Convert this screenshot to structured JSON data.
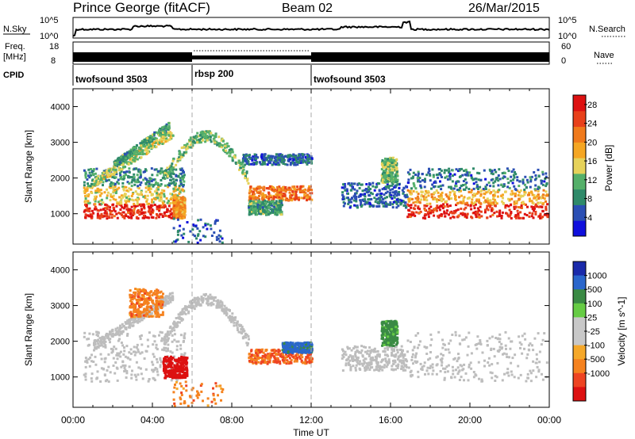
{
  "header": {
    "station": "Prince George (fitACF)",
    "beam": "Beam 02",
    "date": "26/Mar/2015"
  },
  "top_panels": {
    "nsky_label": "N.Sky",
    "nsearch_label": "N.Search",
    "nsky_ticks": [
      "10^5",
      "10^0"
    ],
    "freq_label_1": "Freq.",
    "freq_label_2": "[MHz]",
    "freq_ticks": [
      "18",
      "8"
    ],
    "nave_label": "Nave",
    "nave_ticks": [
      "60",
      "0"
    ],
    "cpid_label": "CPID",
    "cpid_segments": [
      {
        "label": "twofsound 3503",
        "start_h": 0,
        "end_h": 6
      },
      {
        "label": "rbsp 200",
        "start_h": 6,
        "end_h": 12
      },
      {
        "label": "twofsound 3503",
        "start_h": 12,
        "end_h": 24
      }
    ]
  },
  "colors": {
    "power": [
      "#1010dd",
      "#2b4fb4",
      "#2f8a6a",
      "#55b06a",
      "#e6d25a",
      "#f5a623",
      "#f07a1c",
      "#e8401a",
      "#dd1111"
    ],
    "velocity": [
      "#dd1111",
      "#ee4422",
      "#f5821f",
      "#f5a82a",
      "#c8c8c8",
      "#c8c8c8",
      "#66cc44",
      "#3a8a44",
      "#2a66cc",
      "#1a2aaa"
    ],
    "ground_grey": "#bdbdbd"
  },
  "chart_data": [
    {
      "type": "heatmap",
      "name": "power",
      "ylabel": "Slant Range [km]",
      "xlim": [
        0,
        24
      ],
      "ylim": [
        150,
        4500
      ],
      "y_ticks": [
        1000,
        2000,
        3000,
        4000
      ],
      "colorbar": {
        "label": "Power [dB]",
        "ticks": [
          "4",
          "8",
          "12",
          "16",
          "20",
          "24",
          "28"
        ],
        "range": [
          0,
          30
        ]
      },
      "mode_change_hours": [
        6,
        12
      ],
      "features": [
        {
          "kind": "band",
          "t0": 0.5,
          "t1": 5.6,
          "r0": 900,
          "r1": 1300,
          "level": 27
        },
        {
          "kind": "band",
          "t0": 0.5,
          "t1": 5.6,
          "r0": 1300,
          "r1": 1800,
          "level": 16
        },
        {
          "kind": "band",
          "t0": 0.5,
          "t1": 5.6,
          "r0": 1800,
          "r1": 2300,
          "level": 8
        },
        {
          "kind": "slope",
          "t0": 1.0,
          "t1": 5.0,
          "r0": 1900,
          "r1": 3300,
          "width": 250,
          "level": 14
        },
        {
          "kind": "slope",
          "t0": 2.0,
          "t1": 4.8,
          "r0": 2400,
          "r1": 3500,
          "width": 200,
          "level": 10
        },
        {
          "kind": "band",
          "t0": 5.0,
          "t1": 5.6,
          "r0": 900,
          "r1": 1500,
          "level": 20
        },
        {
          "kind": "arc",
          "t0": 4.5,
          "t1": 8.8,
          "r0": 2000,
          "r1": 3200,
          "width": 300,
          "level": 12
        },
        {
          "kind": "band",
          "t0": 8.8,
          "t1": 12.0,
          "r0": 1400,
          "r1": 1800,
          "level": 22
        },
        {
          "kind": "band",
          "t0": 8.8,
          "t1": 10.5,
          "r0": 1000,
          "r1": 1400,
          "level": 10
        },
        {
          "kind": "band",
          "t0": 8.5,
          "t1": 12.0,
          "r0": 2400,
          "r1": 2700,
          "level": 6
        },
        {
          "kind": "band",
          "t0": 16.8,
          "t1": 24.0,
          "r0": 900,
          "r1": 1300,
          "level": 27
        },
        {
          "kind": "band",
          "t0": 16.8,
          "t1": 24.0,
          "r0": 1300,
          "r1": 1700,
          "level": 18
        },
        {
          "kind": "band",
          "t0": 16.8,
          "t1": 24.0,
          "r0": 1700,
          "r1": 2300,
          "level": 7
        },
        {
          "kind": "band",
          "t0": 13.5,
          "t1": 16.8,
          "r0": 1200,
          "r1": 1900,
          "level": 6
        },
        {
          "kind": "band",
          "t0": 15.5,
          "t1": 16.3,
          "r0": 1900,
          "r1": 2600,
          "level": 12
        },
        {
          "kind": "speckle",
          "t0": 5.0,
          "t1": 7.5,
          "r0": 200,
          "r1": 900,
          "level": 6
        }
      ]
    },
    {
      "type": "heatmap",
      "name": "velocity",
      "ylabel": "Slant Range [km]",
      "xlabel": "Time UT",
      "xlim": [
        0,
        24
      ],
      "ylim": [
        150,
        4500
      ],
      "y_ticks": [
        1000,
        2000,
        3000,
        4000
      ],
      "x_ticks": [
        "00:00",
        "04:00",
        "08:00",
        "12:00",
        "16:00",
        "20:00",
        "00:00"
      ],
      "colorbar": {
        "label": "Velocity [m s^-1]",
        "unit_sup": "-1",
        "ticks": [
          "1000",
          "500",
          "100",
          "25",
          "-25",
          "-100",
          "-500",
          "-1000"
        ]
      },
      "mode_change_hours": [
        6,
        12
      ],
      "features": [
        {
          "kind": "band",
          "t0": 0.5,
          "t1": 5.6,
          "r0": 900,
          "r1": 2300,
          "level": "ground"
        },
        {
          "kind": "slope",
          "t0": 1.0,
          "t1": 5.0,
          "r0": 1900,
          "r1": 3300,
          "width": 250,
          "level": "ground"
        },
        {
          "kind": "band",
          "t0": 4.5,
          "t1": 5.7,
          "r0": 1000,
          "r1": 1600,
          "level": -900
        },
        {
          "kind": "band",
          "t0": 2.8,
          "t1": 4.5,
          "r0": 2700,
          "r1": 3500,
          "level": -200
        },
        {
          "kind": "arc",
          "t0": 4.5,
          "t1": 8.8,
          "r0": 2000,
          "r1": 3200,
          "width": 300,
          "level": "ground"
        },
        {
          "kind": "band",
          "t0": 8.8,
          "t1": 12.0,
          "r0": 1400,
          "r1": 1800,
          "level": -300
        },
        {
          "kind": "band",
          "t0": 10.5,
          "t1": 12.0,
          "r0": 1700,
          "r1": 2000,
          "level": 500
        },
        {
          "kind": "band",
          "t0": 16.8,
          "t1": 24.0,
          "r0": 900,
          "r1": 2300,
          "level": "ground"
        },
        {
          "kind": "band",
          "t0": 13.5,
          "t1": 16.8,
          "r0": 1200,
          "r1": 1900,
          "level": "ground"
        },
        {
          "kind": "band",
          "t0": 15.5,
          "t1": 16.3,
          "r0": 1900,
          "r1": 2600,
          "level": 200
        },
        {
          "kind": "speckle",
          "t0": 5.0,
          "t1": 7.5,
          "r0": 200,
          "r1": 900,
          "level": -200
        }
      ]
    }
  ]
}
